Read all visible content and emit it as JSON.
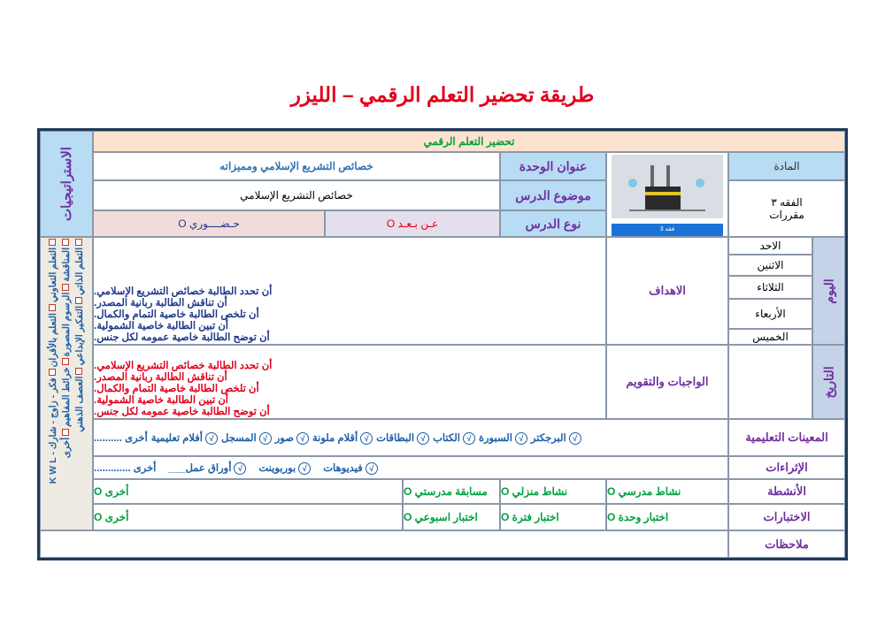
{
  "title": "طريقة تحضير التعلم الرقمي – الليزر",
  "header": "تحضير التعلم الرقمي",
  "strategies": {
    "label": "الاستراتيجيات",
    "lines": [
      [
        "التعلم التعاوني",
        "التعلم بالأقران",
        "فكر - زاوج - شارك - K W L"
      ],
      [
        "المناقشة",
        "الرسوم المصورة",
        "خرائط المفاهيم",
        "أخرى"
      ],
      [
        "التعلم الذاتي",
        "التفكير الإبداعي",
        "العصف الذهني"
      ]
    ]
  },
  "unit": {
    "label": "عنوان الوحدة",
    "value": "خصائص التشريع الإسلامي ومميزاته"
  },
  "lesson": {
    "label": "موضوع الدرس",
    "value": "خصائص التشريع الإسلامي"
  },
  "type": {
    "label": "نوع الدرس",
    "remote": "عـن بـعـد O",
    "inperson": "حـضــــوري O"
  },
  "subject": {
    "label": "المادة",
    "value1": "الفقه ٣",
    "value2": "مقررات",
    "image_caption": "فقه 3"
  },
  "day": {
    "label": "اليوم",
    "days": [
      "الاحد",
      "الاثنين",
      "الثلاثاء",
      "الأربعاء",
      "الخميس"
    ]
  },
  "date": {
    "label": "التاريخ"
  },
  "objectives": {
    "label": "الاهداف",
    "items": [
      "أن تحدد الطالبة خصائص التشريع الإسلامي.",
      "أن تناقش الطالبة ربانية المصدر.",
      "أن تلخص الطالبة خاصية التمام والكمال.",
      "أن تبين الطالبة خاصية الشمولية.",
      "أن توضح الطالبة خاصية عمومه لكل جنس."
    ]
  },
  "homework": {
    "label": "الواجبات والتقويم",
    "items": [
      "أن تحدد الطالبة خصائص التشريع الإسلامي.",
      "أن تناقش الطالبة ربانية المصدر.",
      "أن تلخص الطالبة خاصية التمام والكمال.",
      "أن تبين الطالبة خاصية الشمولية.",
      "أن توضح الطالبة خاصية عمومه لكل جنس."
    ]
  },
  "aids": {
    "label": "المعينات التعليمية",
    "items": [
      "البرجكتر",
      "السبورة",
      "الكتاب",
      "البطاقات",
      "أقلام ملونة",
      "صور",
      "المسجل",
      "أفلام تعليمية",
      "أخرى .........."
    ]
  },
  "enrichment": {
    "label": "الإثراءات",
    "items": [
      "فيديوهات",
      "بوربوينت",
      "أوراق عمل___",
      "أخرى ............."
    ]
  },
  "activities": {
    "label": "الأنشطة",
    "items": [
      "نشاط مدرسي O",
      "نشاط منزلي O",
      "مسابقة مدرستي O",
      "أخرى O"
    ]
  },
  "tests": {
    "label": "الاختبارات",
    "items": [
      "اختبار وحدة O",
      "اختبار فترة O",
      "اختبار اسبوعي O",
      "أخرى O"
    ]
  },
  "notes": {
    "label": "ملاحظات"
  },
  "colors": {
    "title": "#e0001b",
    "label_bg": "#b7dcf3",
    "label_text": "#7030a0",
    "green": "#00a040",
    "red": "#e0001b",
    "blue": "#1f5fa8"
  }
}
